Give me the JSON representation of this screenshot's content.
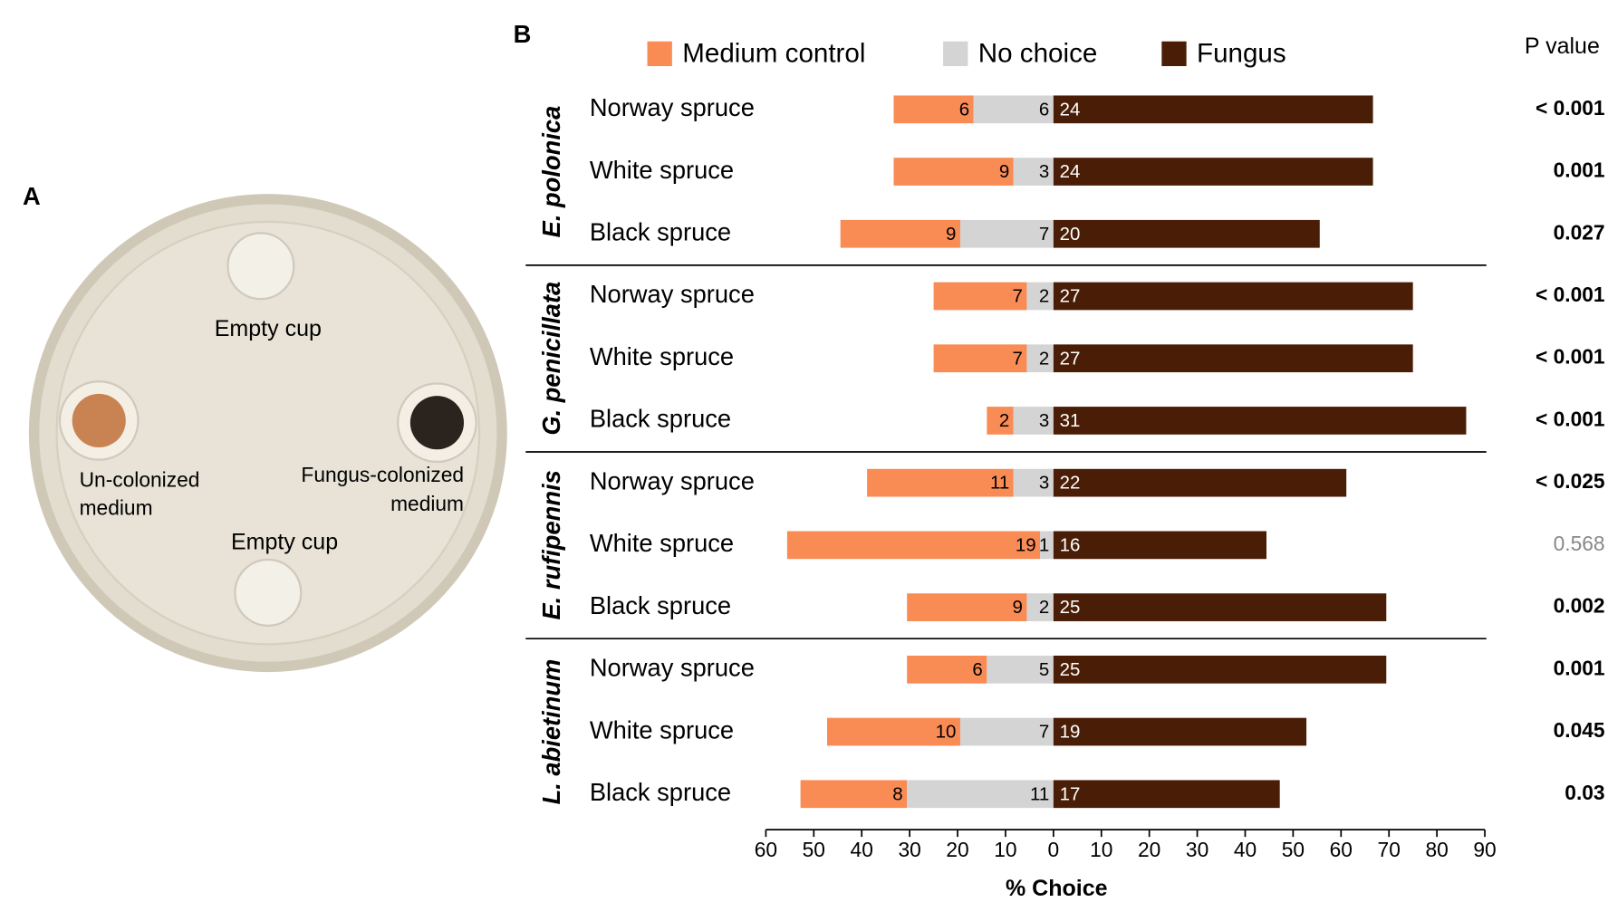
{
  "panel_a": {
    "label": "A",
    "texts": [
      "Empty cup",
      "Un-colonized",
      "medium",
      "Fungus-colonized",
      "medium",
      "Empty cup"
    ]
  },
  "chart_data": {
    "type": "bar",
    "panel_label": "B",
    "xlabel": "% Choice",
    "xlim": [
      -60,
      90
    ],
    "xticks": [
      {
        "value": -60,
        "label": "60"
      },
      {
        "value": -50,
        "label": "50"
      },
      {
        "value": -40,
        "label": "40"
      },
      {
        "value": -30,
        "label": "30"
      },
      {
        "value": -20,
        "label": "20"
      },
      {
        "value": -10,
        "label": "10"
      },
      0,
      10,
      20,
      30,
      40,
      50,
      60,
      70,
      80,
      90
    ],
    "groups": [
      {
        "name": "E. polonica",
        "categories": [
          "Norway spruce",
          "White spruce",
          "Black spruce"
        ]
      },
      {
        "name": "G. penicillata",
        "categories": [
          "Norway spruce",
          "White spruce",
          "Black spruce"
        ]
      },
      {
        "name": "E. rufipennis",
        "categories": [
          "Norway spruce",
          "White spruce",
          "Black spruce"
        ]
      },
      {
        "name": "L. abietinum",
        "categories": [
          "Norway spruce",
          "White spruce",
          "Black spruce"
        ]
      }
    ],
    "series": [
      {
        "name": "Medium control",
        "color": "#f98b55",
        "values": [
          6,
          9,
          9,
          7,
          7,
          2,
          11,
          19,
          9,
          6,
          10,
          8
        ]
      },
      {
        "name": "No choice",
        "color": "#d4d4d4",
        "values": [
          6,
          3,
          7,
          2,
          2,
          3,
          3,
          1,
          2,
          5,
          7,
          11
        ]
      },
      {
        "name": "Fungus",
        "color": "#4a1e06",
        "values": [
          24,
          24,
          20,
          27,
          27,
          31,
          22,
          16,
          25,
          25,
          19,
          17
        ]
      }
    ],
    "p_value_label": "P value",
    "p_values": [
      "< 0.001",
      "0.001",
      "0.027",
      "< 0.001",
      "< 0.001",
      "< 0.001",
      "< 0.025",
      "0.568",
      "0.002",
      "0.001",
      "0.045",
      "0.03"
    ],
    "p_value_colors": [
      "#000",
      "#000",
      "#000",
      "#000",
      "#000",
      "#000",
      "#000",
      "#888",
      "#000",
      "#000",
      "#000",
      "#000"
    ]
  }
}
